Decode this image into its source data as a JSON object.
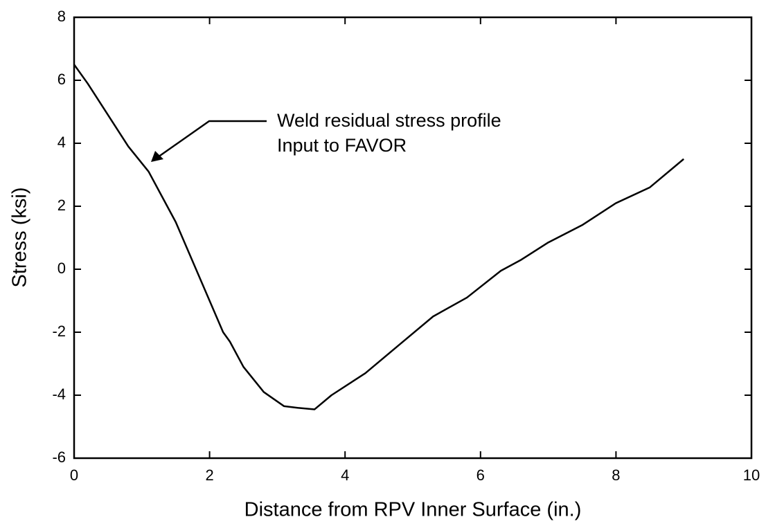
{
  "chart_data": {
    "type": "line",
    "xlabel": "Distance from RPV Inner Surface (in.)",
    "ylabel": "Stress (ksi)",
    "annotations": [
      "Weld residual stress profile",
      "Input to FAVOR"
    ],
    "x": [
      0,
      0.2,
      0.5,
      0.8,
      1.1,
      1.3,
      1.5,
      1.7,
      2.0,
      2.2,
      2.3,
      2.5,
      2.8,
      3.1,
      3.3,
      3.55,
      3.8,
      4.3,
      4.8,
      5.3,
      5.8,
      6.3,
      6.6,
      7.0,
      7.5,
      8.0,
      8.5,
      9.0
    ],
    "series": [
      {
        "color": "#000000",
        "values": [
          6.5,
          5.9,
          4.9,
          3.9,
          3.1,
          2.3,
          1.5,
          0.5,
          -1.0,
          -2.0,
          -2.3,
          -3.1,
          -3.9,
          -4.35,
          -4.4,
          -4.45,
          -4.0,
          -3.3,
          -2.4,
          -1.5,
          -0.9,
          -0.05,
          0.3,
          0.85,
          1.4,
          2.1,
          2.6,
          3.5
        ]
      }
    ],
    "xlim": [
      0,
      10
    ],
    "xticks": [
      0,
      2,
      4,
      6,
      8,
      10
    ],
    "ylim": [
      -6,
      8
    ],
    "yticks": [
      -6,
      -4,
      -2,
      0,
      2,
      4,
      6,
      8
    ],
    "grid": false
  }
}
